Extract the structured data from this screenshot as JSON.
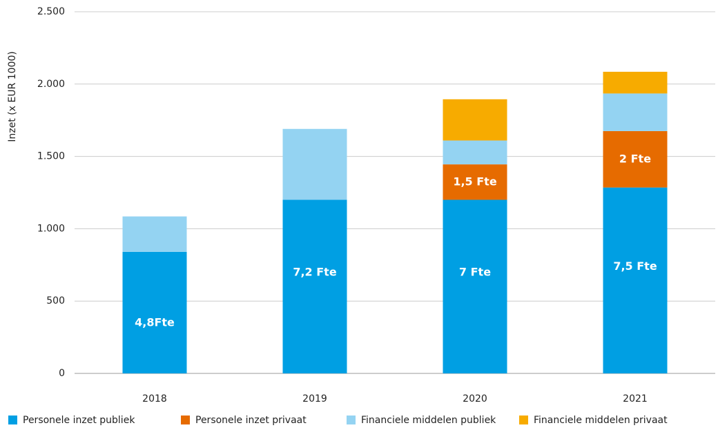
{
  "chart_data": {
    "type": "stacked_bar",
    "y_label": "Inzet (x EUR 1000)",
    "categories": [
      "2018",
      "2019",
      "2020",
      "2021"
    ],
    "series": [
      {
        "name": "Personele inzet publiek",
        "color": "#009fe3",
        "values": [
          840,
          1200,
          1200,
          1285
        ],
        "labels": [
          "4,8Fte",
          "7,2 Fte",
          "7 Fte",
          "7,5 Fte"
        ]
      },
      {
        "name": "Personele inzet privaat",
        "color": "#e66b00",
        "values": [
          null,
          null,
          245,
          390
        ],
        "labels": [
          null,
          null,
          "1,5 Fte",
          "2 Fte"
        ]
      },
      {
        "name": "Financiele middelen publiek",
        "color": "#94d3f2",
        "values": [
          245,
          490,
          165,
          260
        ]
      },
      {
        "name": "Financiele middelen privaat",
        "color": "#f7ab00",
        "values": [
          null,
          null,
          285,
          150
        ]
      }
    ],
    "ylim": [
      0,
      2500
    ],
    "yticks": [
      0,
      500,
      {
        "value": 1000,
        "label": "1.000"
      },
      {
        "value": 1500,
        "label": "1.500"
      },
      {
        "value": 2000,
        "label": "2.000"
      },
      {
        "value": 2500,
        "label": "2.500"
      }
    ],
    "grid": true
  }
}
